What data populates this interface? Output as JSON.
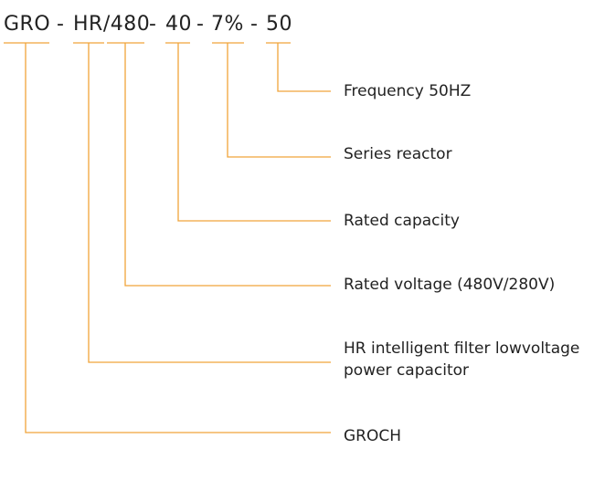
{
  "code_segments": [
    "GRO",
    "-",
    "HR/480",
    "-",
    "40",
    "-",
    "7%",
    "-",
    "50"
  ],
  "labels": [
    {
      "text": "Frequency 50HZ"
    },
    {
      "text": "Series reactor"
    },
    {
      "text": "Rated capacity"
    },
    {
      "text": "Rated voltage (480V/280V)"
    },
    {
      "text": "HR intelligent filter lowvoltage",
      "text2": "power capacitor"
    },
    {
      "text": "GROCH"
    }
  ],
  "colors": {
    "line": "#f0a43a",
    "text": "#222222"
  }
}
